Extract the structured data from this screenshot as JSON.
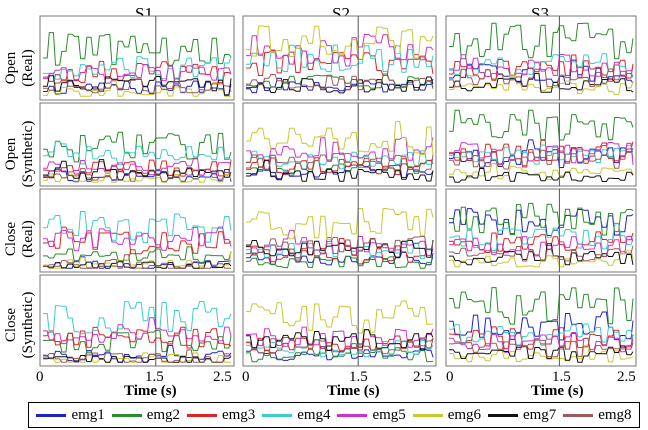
{
  "columns": [
    "S1",
    "S2",
    "S3"
  ],
  "rows": [
    {
      "line1": "Open",
      "line2": "(Real)"
    },
    {
      "line1": "Open",
      "line2": "(Synthetic)"
    },
    {
      "line1": "Close",
      "line2": "(Real)"
    },
    {
      "line1": "Close",
      "line2": "(Synthetic)"
    }
  ],
  "x_ticks": [
    "0",
    "1.5",
    "2.5"
  ],
  "xlabel": "Time (s)",
  "legend": [
    {
      "label": "emg1",
      "color": "#1f1fcc"
    },
    {
      "label": "emg2",
      "color": "#2a8c2a"
    },
    {
      "label": "emg3",
      "color": "#e02424"
    },
    {
      "label": "emg4",
      "color": "#3ccccc"
    },
    {
      "label": "emg5",
      "color": "#cc33cc"
    },
    {
      "label": "emg6",
      "color": "#c8c832"
    },
    {
      "label": "emg7",
      "color": "#111111"
    },
    {
      "label": "emg8",
      "color": "#9c5a5a"
    }
  ],
  "chart_data": {
    "type": "line",
    "layout": "grid 4 rows x 3 columns",
    "x_range": [
      0,
      2.5
    ],
    "x_ticks": [
      0,
      1.5,
      2.5
    ],
    "vertical_reference_line_x": 1.5,
    "series_names": [
      "emg1",
      "emg2",
      "emg3",
      "emg4",
      "emg5",
      "emg6",
      "emg7",
      "emg8"
    ],
    "y_range": [
      0,
      1
    ],
    "panels": [
      [
        {
          "row": "Open (Real)",
          "col": "S1",
          "levels": [
            0.12,
            0.62,
            0.33,
            0.38,
            0.3,
            0.05,
            0.18,
            0.15
          ]
        },
        {
          "row": "Open (Real)",
          "col": "S2",
          "levels": [
            0.15,
            0.2,
            0.45,
            0.5,
            0.62,
            0.7,
            0.15,
            0.2
          ]
        },
        {
          "row": "Open (Real)",
          "col": "S3",
          "levels": [
            0.3,
            0.75,
            0.35,
            0.42,
            0.4,
            0.12,
            0.15,
            0.25
          ]
        }
      ],
      [
        {
          "row": "Open (Synthetic)",
          "col": "S1",
          "levels": [
            0.1,
            0.5,
            0.2,
            0.4,
            0.22,
            0.05,
            0.12,
            0.1
          ]
        },
        {
          "row": "Open (Synthetic)",
          "col": "S2",
          "levels": [
            0.15,
            0.2,
            0.22,
            0.3,
            0.45,
            0.58,
            0.1,
            0.28
          ]
        },
        {
          "row": "Open (Synthetic)",
          "col": "S3",
          "levels": [
            0.35,
            0.72,
            0.42,
            0.38,
            0.4,
            0.12,
            0.08,
            0.3
          ]
        }
      ],
      [
        {
          "row": "Close (Real)",
          "col": "S1",
          "levels": [
            0.04,
            0.18,
            0.35,
            0.55,
            0.4,
            0.05,
            0.03,
            0.03
          ]
        },
        {
          "row": "Close (Real)",
          "col": "S2",
          "levels": [
            0.15,
            0.1,
            0.2,
            0.25,
            0.3,
            0.6,
            0.28,
            0.3
          ]
        },
        {
          "row": "Close (Real)",
          "col": "S3",
          "levels": [
            0.6,
            0.65,
            0.35,
            0.4,
            0.3,
            0.1,
            0.15,
            0.2
          ]
        }
      ],
      [
        {
          "row": "Close (Synthetic)",
          "col": "S1",
          "levels": [
            0.08,
            0.25,
            0.3,
            0.55,
            0.35,
            0.05,
            0.03,
            0.05
          ]
        },
        {
          "row": "Close (Synthetic)",
          "col": "S2",
          "levels": [
            0.12,
            0.1,
            0.22,
            0.18,
            0.3,
            0.55,
            0.28,
            0.2
          ]
        },
        {
          "row": "Close (Synthetic)",
          "col": "S3",
          "levels": [
            0.45,
            0.7,
            0.3,
            0.35,
            0.25,
            0.08,
            0.12,
            0.18
          ]
        }
      ]
    ]
  }
}
